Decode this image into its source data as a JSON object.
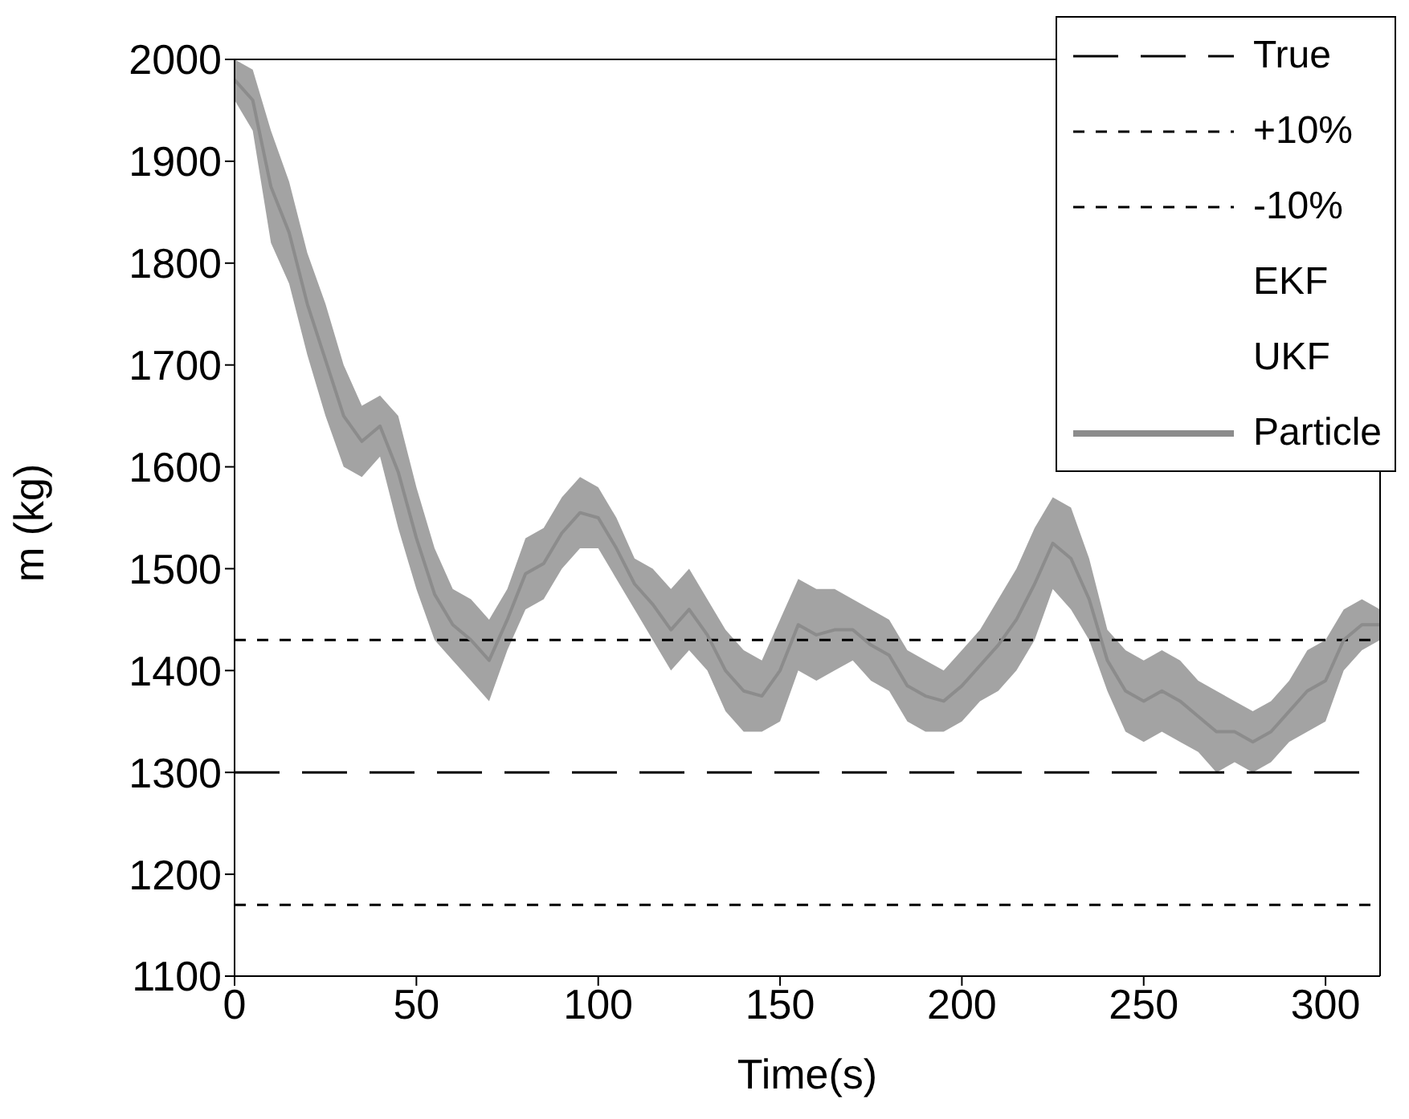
{
  "chart_data": {
    "type": "line",
    "xlabel": "Time(s)",
    "ylabel": "m (kg)",
    "xlim": [
      0,
      315
    ],
    "ylim": [
      1100,
      2000
    ],
    "xticks": [
      0,
      50,
      100,
      150,
      200,
      250,
      300
    ],
    "yticks": [
      1100,
      1200,
      1300,
      1400,
      1500,
      1600,
      1700,
      1800,
      1900,
      2000
    ],
    "legend": "top right",
    "marker": "none",
    "series": [
      {
        "name": "True",
        "color": "#000000",
        "line_style": "dashed",
        "x": [
          0,
          315
        ],
        "values": [
          1300,
          1300
        ]
      },
      {
        "name": "+10%",
        "color": "#000000",
        "line_style": "dotted",
        "x": [
          0,
          315
        ],
        "values": [
          1430,
          1430
        ]
      },
      {
        "name": "-10%",
        "color": "#000000",
        "line_style": "dotted",
        "x": [
          0,
          315
        ],
        "values": [
          1170,
          1170
        ]
      },
      {
        "name": "EKF"
      },
      {
        "name": "UKF"
      },
      {
        "name": "Particle",
        "color": "#8c8c8c",
        "line_style": "solid",
        "x": [
          0,
          5,
          10,
          15,
          20,
          25,
          30,
          35,
          40,
          45,
          50,
          55,
          60,
          65,
          70,
          75,
          80,
          85,
          90,
          95,
          100,
          105,
          110,
          115,
          120,
          125,
          130,
          135,
          140,
          145,
          150,
          155,
          160,
          165,
          170,
          175,
          180,
          185,
          190,
          195,
          200,
          205,
          210,
          215,
          220,
          225,
          230,
          235,
          240,
          245,
          250,
          255,
          260,
          265,
          270,
          275,
          280,
          285,
          290,
          295,
          300,
          305,
          310,
          315
        ],
        "values": [
          1980,
          1960,
          1875,
          1830,
          1760,
          1705,
          1650,
          1625,
          1640,
          1595,
          1530,
          1475,
          1445,
          1430,
          1410,
          1450,
          1495,
          1505,
          1535,
          1555,
          1550,
          1520,
          1485,
          1465,
          1440,
          1460,
          1435,
          1400,
          1380,
          1375,
          1400,
          1445,
          1435,
          1440,
          1440,
          1425,
          1415,
          1385,
          1375,
          1370,
          1385,
          1405,
          1425,
          1450,
          1485,
          1525,
          1510,
          1470,
          1410,
          1380,
          1370,
          1380,
          1370,
          1355,
          1340,
          1340,
          1330,
          1340,
          1360,
          1380,
          1390,
          1430,
          1445,
          1445
        ],
        "lower": [
          1960,
          1930,
          1820,
          1780,
          1710,
          1650,
          1600,
          1590,
          1610,
          1540,
          1480,
          1430,
          1410,
          1390,
          1370,
          1420,
          1460,
          1470,
          1500,
          1520,
          1520,
          1490,
          1460,
          1430,
          1400,
          1420,
          1400,
          1360,
          1340,
          1340,
          1350,
          1400,
          1390,
          1400,
          1410,
          1390,
          1380,
          1350,
          1340,
          1340,
          1350,
          1370,
          1380,
          1400,
          1430,
          1480,
          1460,
          1430,
          1380,
          1340,
          1330,
          1340,
          1330,
          1320,
          1300,
          1310,
          1300,
          1310,
          1330,
          1340,
          1350,
          1400,
          1420,
          1430
        ],
        "upper": [
          2000,
          1990,
          1930,
          1880,
          1810,
          1760,
          1700,
          1660,
          1670,
          1650,
          1580,
          1520,
          1480,
          1470,
          1450,
          1480,
          1530,
          1540,
          1570,
          1590,
          1580,
          1550,
          1510,
          1500,
          1480,
          1500,
          1470,
          1440,
          1420,
          1410,
          1450,
          1490,
          1480,
          1480,
          1470,
          1460,
          1450,
          1420,
          1410,
          1400,
          1420,
          1440,
          1470,
          1500,
          1540,
          1570,
          1560,
          1510,
          1440,
          1420,
          1410,
          1420,
          1410,
          1390,
          1380,
          1370,
          1360,
          1370,
          1390,
          1420,
          1430,
          1460,
          1470,
          1460
        ]
      }
    ]
  }
}
